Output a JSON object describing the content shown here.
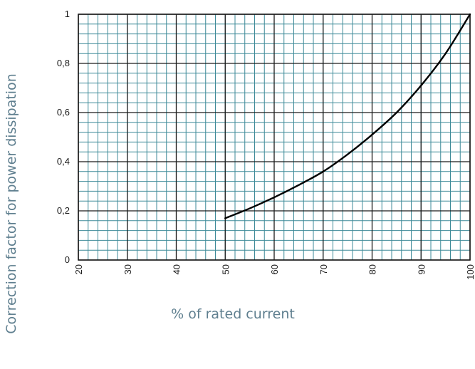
{
  "chart_data": {
    "type": "line",
    "title": "",
    "xlabel": "% of rated current",
    "ylabel": "Correction factor for power dissipation",
    "xlim": [
      20,
      100
    ],
    "ylim": [
      0,
      1
    ],
    "x_ticks": [
      "20",
      "30",
      "40",
      "50",
      "60",
      "70",
      "80",
      "90",
      "100"
    ],
    "y_ticks": [
      "0",
      "0,2",
      "0,4",
      "0,6",
      "0,8",
      "1"
    ],
    "grid": true,
    "grid_minor_x_step": 2,
    "grid_minor_y_step": 0.04,
    "colors": {
      "grid": "#3d8a98",
      "major_grid": "#1a1a1a",
      "curve": "#000000",
      "axis_title": "#5f7f8f"
    },
    "series": [
      {
        "x": [
          50,
          55,
          60,
          65,
          70,
          75,
          80,
          85,
          90,
          95,
          100
        ],
        "values": [
          0.17,
          0.21,
          0.255,
          0.305,
          0.36,
          0.43,
          0.51,
          0.6,
          0.71,
          0.84,
          1.0
        ]
      }
    ]
  }
}
